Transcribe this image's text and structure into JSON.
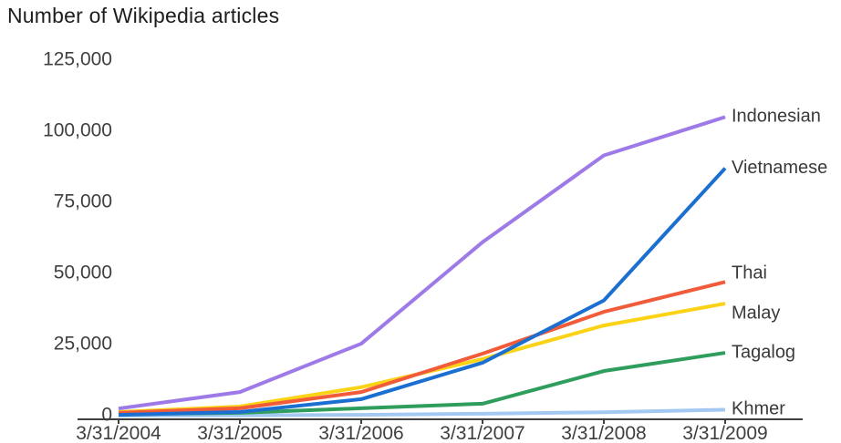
{
  "page": {
    "background": "#ffffff"
  },
  "colors": {
    "title_text": "#1d1d1d",
    "axis_label_text": "#3f3f3f",
    "series_label_text": "#3a3a3a",
    "axis_line": "#3f3f3f"
  },
  "chart_data": {
    "type": "line",
    "title": "Number of Wikipedia articles",
    "xlabel": "",
    "ylabel": "",
    "x_tick_labels": [
      "3/31/2004",
      "3/31/2005",
      "3/31/2006",
      "3/31/2007",
      "3/31/2008",
      "3/31/2009"
    ],
    "y_ticks": [
      0,
      25000,
      50000,
      75000,
      100000,
      125000
    ],
    "ylim": [
      0,
      137500
    ],
    "grid": "off",
    "legend_position": "end-of-line-labels-right",
    "series": [
      {
        "name": "Indonesian",
        "color": "#9e7ae8",
        "values": [
          2500,
          8300,
          25300,
          61000,
          91500,
          105000
        ],
        "label_dy": 0
      },
      {
        "name": "Vietnamese",
        "color": "#1b6fd0",
        "values": [
          300,
          1300,
          5800,
          18600,
          40500,
          87000
        ],
        "label_dy": 0
      },
      {
        "name": "Thai",
        "color": "#f25b3a",
        "values": [
          1000,
          2600,
          8300,
          21800,
          36500,
          47000
        ],
        "label_dy": -9
      },
      {
        "name": "Malay",
        "color": "#fad316",
        "values": [
          1300,
          3200,
          10000,
          19900,
          31700,
          39400
        ],
        "label_dy": 11
      },
      {
        "name": "Tagalog",
        "color": "#2f9d5c",
        "values": [
          500,
          1000,
          2600,
          4200,
          15700,
          22100
        ],
        "label_dy": 0
      },
      {
        "name": "Khmer",
        "color": "#a3c9f2",
        "values": [
          50,
          100,
          300,
          700,
          1200,
          2100
        ],
        "label_dy": 0
      }
    ]
  }
}
